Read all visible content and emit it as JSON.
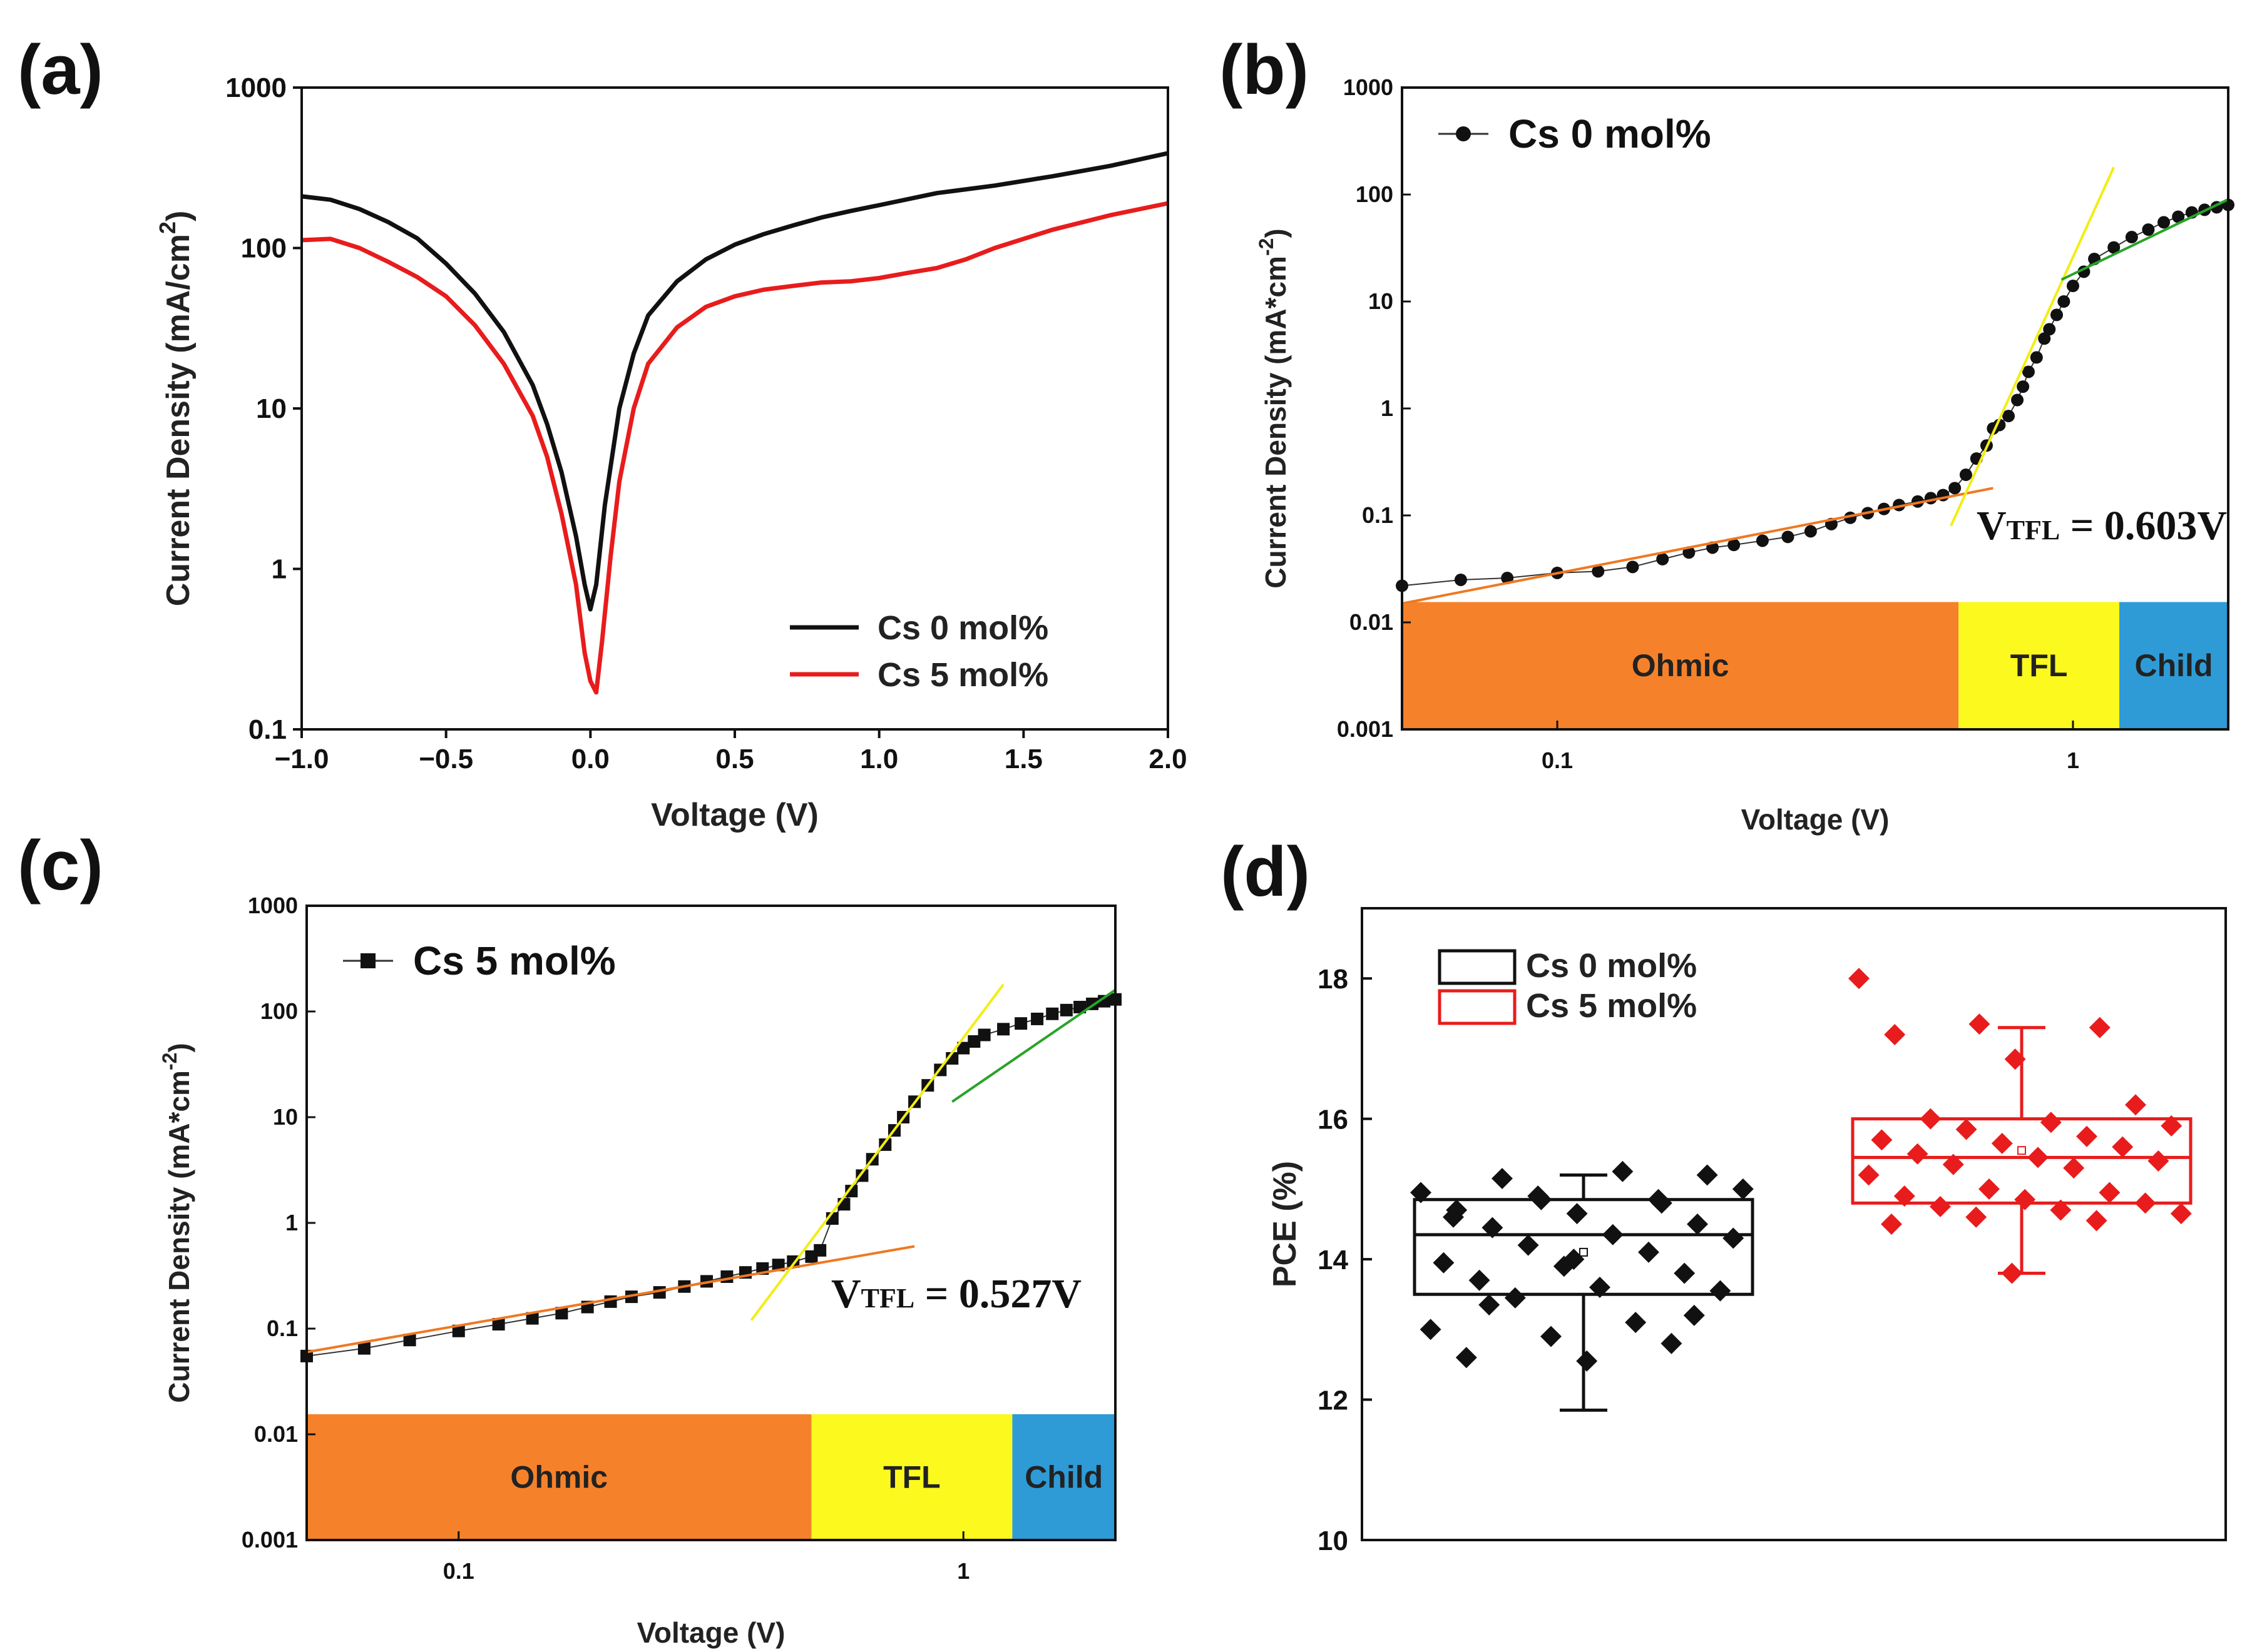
{
  "chart_data": [
    {
      "id": "a",
      "panel_label": "(a)",
      "type": "line",
      "title": "",
      "xlabel": "Voltage (V)",
      "ylabel_main": "Current Density (mA/cm",
      "ylabel_sup": "2",
      "ylabel_end": ")",
      "xlim": [
        -1.0,
        2.0
      ],
      "ylim": [
        0.1,
        1000
      ],
      "yscale": "log",
      "xticks": [
        -1.0,
        -0.5,
        0.0,
        0.5,
        1.0,
        1.5,
        2.0
      ],
      "xtick_labels": [
        "−1.0",
        "−0.5",
        "0.0",
        "0.5",
        "1.0",
        "1.5",
        "2.0"
      ],
      "yticks": [
        0.1,
        1,
        10,
        100,
        1000
      ],
      "ytick_labels": [
        "0.1",
        "1",
        "10",
        "100",
        "1000"
      ],
      "legend_position": "lower-right",
      "series": [
        {
          "name": "Cs 0 mol%",
          "color": "#111111",
          "points": [
            [
              -1.0,
              210
            ],
            [
              -0.9,
              200
            ],
            [
              -0.8,
              175
            ],
            [
              -0.7,
              145
            ],
            [
              -0.6,
              115
            ],
            [
              -0.5,
              80
            ],
            [
              -0.4,
              52
            ],
            [
              -0.3,
              30
            ],
            [
              -0.2,
              14
            ],
            [
              -0.15,
              8
            ],
            [
              -0.1,
              4
            ],
            [
              -0.05,
              1.6
            ],
            [
              -0.02,
              0.8
            ],
            [
              0.0,
              0.56
            ],
            [
              0.02,
              0.8
            ],
            [
              0.05,
              2.5
            ],
            [
              0.1,
              10
            ],
            [
              0.15,
              22
            ],
            [
              0.2,
              38
            ],
            [
              0.3,
              62
            ],
            [
              0.4,
              85
            ],
            [
              0.5,
              105
            ],
            [
              0.6,
              122
            ],
            [
              0.7,
              138
            ],
            [
              0.8,
              155
            ],
            [
              0.9,
              170
            ],
            [
              1.0,
              185
            ],
            [
              1.2,
              220
            ],
            [
              1.4,
              245
            ],
            [
              1.6,
              280
            ],
            [
              1.8,
              325
            ],
            [
              2.0,
              390
            ]
          ]
        },
        {
          "name": "Cs 5 mol%",
          "color": "#e81c1c",
          "points": [
            [
              -1.0,
              112
            ],
            [
              -0.9,
              114
            ],
            [
              -0.8,
              100
            ],
            [
              -0.7,
              82
            ],
            [
              -0.6,
              66
            ],
            [
              -0.5,
              50
            ],
            [
              -0.4,
              33
            ],
            [
              -0.3,
              19
            ],
            [
              -0.2,
              9
            ],
            [
              -0.15,
              5
            ],
            [
              -0.1,
              2.2
            ],
            [
              -0.05,
              0.8
            ],
            [
              -0.02,
              0.3
            ],
            [
              0.0,
              0.2
            ],
            [
              0.02,
              0.17
            ],
            [
              0.04,
              0.35
            ],
            [
              0.07,
              1.2
            ],
            [
              0.1,
              3.5
            ],
            [
              0.15,
              10
            ],
            [
              0.2,
              19
            ],
            [
              0.3,
              32
            ],
            [
              0.4,
              43
            ],
            [
              0.5,
              50
            ],
            [
              0.6,
              55
            ],
            [
              0.7,
              58
            ],
            [
              0.8,
              61
            ],
            [
              0.9,
              62
            ],
            [
              1.0,
              65
            ],
            [
              1.1,
              70
            ],
            [
              1.2,
              75
            ],
            [
              1.3,
              85
            ],
            [
              1.4,
              100
            ],
            [
              1.6,
              130
            ],
            [
              1.8,
              160
            ],
            [
              2.0,
              190
            ]
          ]
        }
      ]
    },
    {
      "id": "b",
      "panel_label": "(b)",
      "type": "scatter",
      "xscale": "log",
      "yscale": "log",
      "xlabel": "Voltage (V)",
      "ylabel_main": "Current Density (mA*cm",
      "ylabel_sup": "-2",
      "ylabel_end": ")",
      "xlim": [
        0.05,
        2.0
      ],
      "ylim": [
        0.001,
        1000
      ],
      "xticks": [
        0.1,
        1
      ],
      "xtick_labels": [
        "0.1",
        "1"
      ],
      "yticks": [
        0.001,
        0.01,
        0.1,
        1,
        10,
        100,
        1000
      ],
      "ytick_labels": [
        "0.001",
        "0.01",
        "0.1",
        "1",
        "10",
        "100",
        "1000"
      ],
      "legend": "Cs 0 mol%",
      "marker": "circle",
      "annotation_main": "V",
      "annotation_sub": "TFL",
      "annotation_value": " = 0.603V",
      "regions": [
        {
          "label": "Ohmic",
          "from": 0.05,
          "to": 0.6,
          "color": "#f5822b"
        },
        {
          "label": "TFL",
          "from": 0.6,
          "to": 1.23,
          "color": "#fcf91e"
        },
        {
          "label": "Child",
          "from": 1.23,
          "to": 2.0,
          "color": "#2e9bd6"
        }
      ],
      "fit_lines": [
        {
          "color": "#f07821",
          "from": [
            0.05,
            0.015
          ],
          "to": [
            0.7,
            0.18
          ]
        },
        {
          "color": "#f2ee12",
          "from": [
            0.58,
            0.08
          ],
          "to": [
            1.2,
            180
          ]
        },
        {
          "color": "#27a327",
          "from": [
            0.95,
            16
          ],
          "to": [
            2.0,
            90
          ]
        }
      ],
      "points": [
        [
          0.05,
          0.022
        ],
        [
          0.065,
          0.025
        ],
        [
          0.08,
          0.026
        ],
        [
          0.1,
          0.029
        ],
        [
          0.12,
          0.03
        ],
        [
          0.14,
          0.033
        ],
        [
          0.16,
          0.039
        ],
        [
          0.18,
          0.045
        ],
        [
          0.2,
          0.05
        ],
        [
          0.22,
          0.053
        ],
        [
          0.25,
          0.058
        ],
        [
          0.28,
          0.063
        ],
        [
          0.31,
          0.071
        ],
        [
          0.34,
          0.083
        ],
        [
          0.37,
          0.095
        ],
        [
          0.4,
          0.105
        ],
        [
          0.43,
          0.115
        ],
        [
          0.46,
          0.125
        ],
        [
          0.5,
          0.135
        ],
        [
          0.53,
          0.145
        ],
        [
          0.56,
          0.155
        ],
        [
          0.59,
          0.18
        ],
        [
          0.62,
          0.24
        ],
        [
          0.65,
          0.34
        ],
        [
          0.68,
          0.45
        ],
        [
          0.7,
          0.65
        ],
        [
          0.72,
          0.7
        ],
        [
          0.75,
          0.85
        ],
        [
          0.78,
          1.2
        ],
        [
          0.8,
          1.6
        ],
        [
          0.82,
          2.2
        ],
        [
          0.85,
          3
        ],
        [
          0.88,
          4.5
        ],
        [
          0.9,
          5.5
        ],
        [
          0.93,
          7.5
        ],
        [
          0.96,
          10
        ],
        [
          1.0,
          14
        ],
        [
          1.05,
          19
        ],
        [
          1.1,
          25
        ],
        [
          1.2,
          32
        ],
        [
          1.3,
          40
        ],
        [
          1.4,
          47
        ],
        [
          1.5,
          55
        ],
        [
          1.6,
          62
        ],
        [
          1.7,
          68
        ],
        [
          1.8,
          72
        ],
        [
          1.9,
          76
        ],
        [
          2.0,
          80
        ]
      ]
    },
    {
      "id": "c",
      "panel_label": "(c)",
      "type": "scatter",
      "xscale": "log",
      "yscale": "log",
      "xlabel": "Voltage (V)",
      "ylabel_main": "Current Density (mA*cm",
      "ylabel_sup": "-2",
      "ylabel_end": ")",
      "xlim": [
        0.05,
        2.0
      ],
      "ylim": [
        0.001,
        1000
      ],
      "xticks": [
        0.1,
        1
      ],
      "xtick_labels": [
        "0.1",
        "1"
      ],
      "yticks": [
        0.001,
        0.01,
        0.1,
        1,
        10,
        100,
        1000
      ],
      "ytick_labels": [
        "0.001",
        "0.01",
        "0.1",
        "1",
        "10",
        "100",
        "1000"
      ],
      "legend": "Cs 5 mol%",
      "marker": "square",
      "annotation_main": "V",
      "annotation_sub": "TFL",
      "annotation_value": " = 0.527V",
      "regions": [
        {
          "label": "Ohmic",
          "from": 0.05,
          "to": 0.5,
          "color": "#f5822b"
        },
        {
          "label": "TFL",
          "from": 0.5,
          "to": 1.25,
          "color": "#fcf91e"
        },
        {
          "label": "Child",
          "from": 1.25,
          "to": 2.0,
          "color": "#2e9bd6"
        }
      ],
      "fit_lines": [
        {
          "color": "#f07821",
          "from": [
            0.05,
            0.06
          ],
          "to": [
            0.8,
            0.6
          ]
        },
        {
          "color": "#f2ee12",
          "from": [
            0.38,
            0.12
          ],
          "to": [
            1.2,
            180
          ]
        },
        {
          "color": "#27a327",
          "from": [
            0.95,
            14
          ],
          "to": [
            2.0,
            160
          ]
        }
      ],
      "points": [
        [
          0.05,
          0.055
        ],
        [
          0.065,
          0.065
        ],
        [
          0.08,
          0.078
        ],
        [
          0.1,
          0.095
        ],
        [
          0.12,
          0.11
        ],
        [
          0.14,
          0.125
        ],
        [
          0.16,
          0.14
        ],
        [
          0.18,
          0.16
        ],
        [
          0.2,
          0.18
        ],
        [
          0.22,
          0.2
        ],
        [
          0.25,
          0.22
        ],
        [
          0.28,
          0.25
        ],
        [
          0.31,
          0.28
        ],
        [
          0.34,
          0.31
        ],
        [
          0.37,
          0.34
        ],
        [
          0.4,
          0.37
        ],
        [
          0.43,
          0.4
        ],
        [
          0.46,
          0.43
        ],
        [
          0.5,
          0.48
        ],
        [
          0.52,
          0.55
        ],
        [
          0.55,
          1.1
        ],
        [
          0.58,
          1.5
        ],
        [
          0.6,
          2
        ],
        [
          0.63,
          2.8
        ],
        [
          0.66,
          4
        ],
        [
          0.7,
          5.5
        ],
        [
          0.73,
          7.5
        ],
        [
          0.76,
          10
        ],
        [
          0.8,
          14
        ],
        [
          0.85,
          20
        ],
        [
          0.9,
          28
        ],
        [
          0.95,
          36
        ],
        [
          1.0,
          45
        ],
        [
          1.05,
          52
        ],
        [
          1.1,
          60
        ],
        [
          1.2,
          68
        ],
        [
          1.3,
          77
        ],
        [
          1.4,
          85
        ],
        [
          1.5,
          95
        ],
        [
          1.6,
          103
        ],
        [
          1.7,
          110
        ],
        [
          1.8,
          118
        ],
        [
          1.9,
          125
        ],
        [
          2.0,
          130
        ]
      ]
    },
    {
      "id": "d",
      "panel_label": "(d)",
      "type": "box",
      "ylabel": "PCE (%)",
      "ylim": [
        10,
        19
      ],
      "yticks": [
        10,
        12,
        14,
        16,
        18
      ],
      "ytick_labels": [
        "10",
        "12",
        "14",
        "16",
        "18"
      ],
      "legend_position": "top-left",
      "groups": [
        {
          "name": "Cs 0 mol%",
          "color": "#111111",
          "q1": 13.5,
          "median": 14.35,
          "q3": 14.85,
          "min": 11.85,
          "max": 15.2,
          "mean": 14.1,
          "points": [
            14.95,
            14.85,
            14.8,
            14.7,
            14.65,
            14.5,
            14.45,
            14.35,
            14.3,
            14.2,
            14.1,
            13.95,
            13.9,
            13.8,
            13.7,
            13.6,
            13.55,
            13.45,
            13.1,
            13.0,
            12.9,
            12.8,
            12.6,
            12.55,
            15.2,
            15.15,
            15.25,
            15.0,
            14.9,
            14.85,
            14.6,
            14.0,
            13.2,
            13.35
          ]
        },
        {
          "name": "Cs 5 mol%",
          "color": "#e81c1c",
          "q1": 14.8,
          "median": 15.45,
          "q3": 16.0,
          "min": 13.8,
          "max": 17.3,
          "mean": 15.55,
          "points": [
            18.0,
            17.35,
            17.3,
            17.2,
            16.85,
            16.2,
            16.0,
            15.95,
            15.9,
            15.85,
            15.75,
            15.7,
            15.65,
            15.6,
            15.5,
            15.45,
            15.4,
            15.35,
            15.3,
            15.2,
            15.0,
            14.95,
            14.9,
            14.85,
            14.8,
            14.75,
            14.7,
            14.65,
            14.6,
            14.55,
            14.5,
            13.8
          ]
        }
      ]
    }
  ]
}
